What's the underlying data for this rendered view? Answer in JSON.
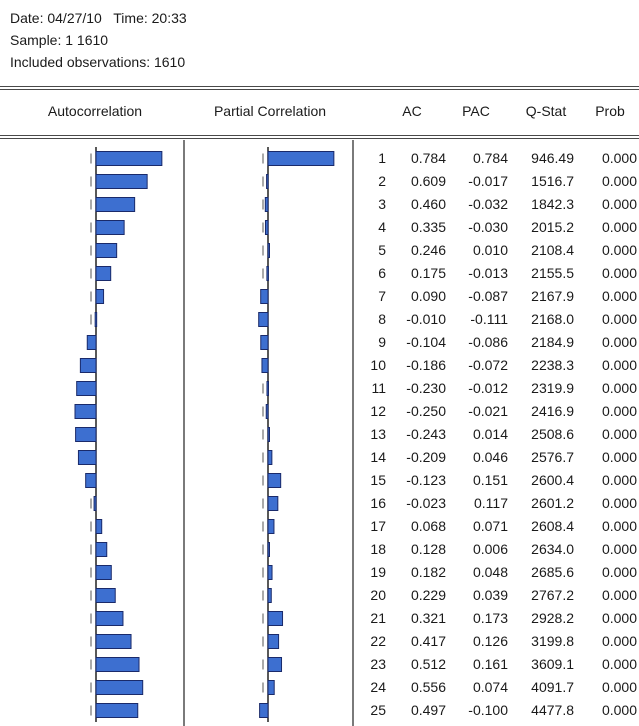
{
  "header": {
    "date_line": "Date: 04/27/10   Time: 20:33",
    "sample_line": "Sample: 1 1610",
    "obs_line": "Included observations: 1610"
  },
  "columns": {
    "autocorrelation": "Autocorrelation",
    "partial_correlation": "Partial Correlation",
    "ac": "AC",
    "pac": "PAC",
    "qstat": "Q-Stat",
    "prob": "Prob"
  },
  "colors": {
    "bar_fill": "#3d6fd0",
    "bar_stroke": "#1a2a6a"
  },
  "rows": [
    {
      "lag": "1",
      "ac": "0.784",
      "pac": "0.784",
      "qstat": "946.49",
      "prob": "0.000"
    },
    {
      "lag": "2",
      "ac": "0.609",
      "pac": "-0.017",
      "qstat": "1516.7",
      "prob": "0.000"
    },
    {
      "lag": "3",
      "ac": "0.460",
      "pac": "-0.032",
      "qstat": "1842.3",
      "prob": "0.000"
    },
    {
      "lag": "4",
      "ac": "0.335",
      "pac": "-0.030",
      "qstat": "2015.2",
      "prob": "0.000"
    },
    {
      "lag": "5",
      "ac": "0.246",
      "pac": "0.010",
      "qstat": "2108.4",
      "prob": "0.000"
    },
    {
      "lag": "6",
      "ac": "0.175",
      "pac": "-0.013",
      "qstat": "2155.5",
      "prob": "0.000"
    },
    {
      "lag": "7",
      "ac": "0.090",
      "pac": "-0.087",
      "qstat": "2167.9",
      "prob": "0.000"
    },
    {
      "lag": "8",
      "ac": "-0.010",
      "pac": "-0.111",
      "qstat": "2168.0",
      "prob": "0.000"
    },
    {
      "lag": "9",
      "ac": "-0.104",
      "pac": "-0.086",
      "qstat": "2184.9",
      "prob": "0.000"
    },
    {
      "lag": "10",
      "ac": "-0.186",
      "pac": "-0.072",
      "qstat": "2238.3",
      "prob": "0.000"
    },
    {
      "lag": "11",
      "ac": "-0.230",
      "pac": "-0.012",
      "qstat": "2319.9",
      "prob": "0.000"
    },
    {
      "lag": "12",
      "ac": "-0.250",
      "pac": "-0.021",
      "qstat": "2416.9",
      "prob": "0.000"
    },
    {
      "lag": "13",
      "ac": "-0.243",
      "pac": "0.014",
      "qstat": "2508.6",
      "prob": "0.000"
    },
    {
      "lag": "14",
      "ac": "-0.209",
      "pac": "0.046",
      "qstat": "2576.7",
      "prob": "0.000"
    },
    {
      "lag": "15",
      "ac": "-0.123",
      "pac": "0.151",
      "qstat": "2600.4",
      "prob": "0.000"
    },
    {
      "lag": "16",
      "ac": "-0.023",
      "pac": "0.117",
      "qstat": "2601.2",
      "prob": "0.000"
    },
    {
      "lag": "17",
      "ac": "0.068",
      "pac": "0.071",
      "qstat": "2608.4",
      "prob": "0.000"
    },
    {
      "lag": "18",
      "ac": "0.128",
      "pac": "0.006",
      "qstat": "2634.0",
      "prob": "0.000"
    },
    {
      "lag": "19",
      "ac": "0.182",
      "pac": "0.048",
      "qstat": "2685.6",
      "prob": "0.000"
    },
    {
      "lag": "20",
      "ac": "0.229",
      "pac": "0.039",
      "qstat": "2767.2",
      "prob": "0.000"
    },
    {
      "lag": "21",
      "ac": "0.321",
      "pac": "0.173",
      "qstat": "2928.2",
      "prob": "0.000"
    },
    {
      "lag": "22",
      "ac": "0.417",
      "pac": "0.126",
      "qstat": "3199.8",
      "prob": "0.000"
    },
    {
      "lag": "23",
      "ac": "0.512",
      "pac": "0.161",
      "qstat": "3609.1",
      "prob": "0.000"
    },
    {
      "lag": "24",
      "ac": "0.556",
      "pac": "0.074",
      "qstat": "4091.7",
      "prob": "0.000"
    },
    {
      "lag": "25",
      "ac": "0.497",
      "pac": "-0.100",
      "qstat": "4477.8",
      "prob": "0.000"
    }
  ],
  "chart_data": [
    {
      "type": "bar",
      "orientation": "horizontal",
      "title": "Autocorrelation",
      "categories": [
        "1",
        "2",
        "3",
        "4",
        "5",
        "6",
        "7",
        "8",
        "9",
        "10",
        "11",
        "12",
        "13",
        "14",
        "15",
        "16",
        "17",
        "18",
        "19",
        "20",
        "21",
        "22",
        "23",
        "24",
        "25"
      ],
      "values": [
        0.784,
        0.609,
        0.46,
        0.335,
        0.246,
        0.175,
        0.09,
        -0.01,
        -0.104,
        -0.186,
        -0.23,
        -0.25,
        -0.243,
        -0.209,
        -0.123,
        -0.023,
        0.068,
        0.128,
        0.182,
        0.229,
        0.321,
        0.417,
        0.512,
        0.556,
        0.497
      ]
    },
    {
      "type": "bar",
      "orientation": "horizontal",
      "title": "Partial Correlation",
      "categories": [
        "1",
        "2",
        "3",
        "4",
        "5",
        "6",
        "7",
        "8",
        "9",
        "10",
        "11",
        "12",
        "13",
        "14",
        "15",
        "16",
        "17",
        "18",
        "19",
        "20",
        "21",
        "22",
        "23",
        "24",
        "25"
      ],
      "values": [
        0.784,
        -0.017,
        -0.032,
        -0.03,
        0.01,
        -0.013,
        -0.087,
        -0.111,
        -0.086,
        -0.072,
        -0.012,
        -0.021,
        0.014,
        0.046,
        0.151,
        0.117,
        0.071,
        0.006,
        0.048,
        0.039,
        0.173,
        0.126,
        0.161,
        0.074,
        -0.1
      ]
    }
  ]
}
